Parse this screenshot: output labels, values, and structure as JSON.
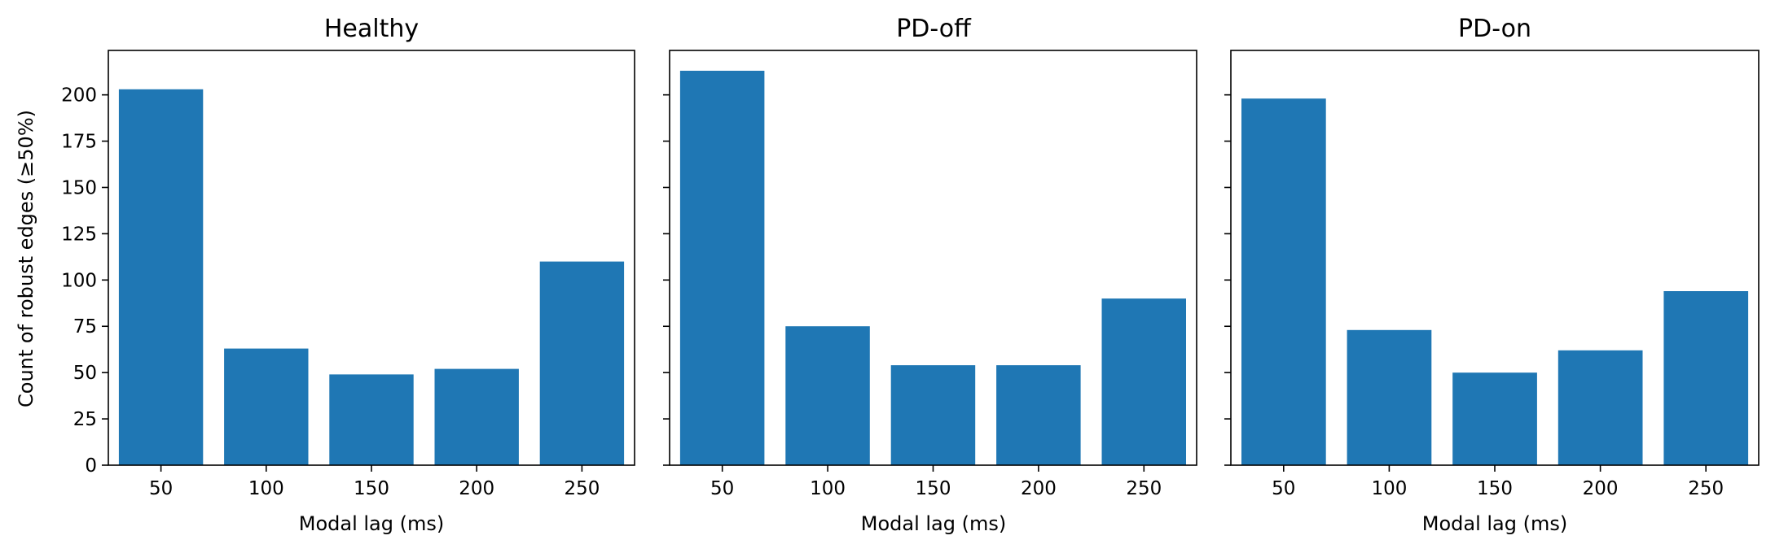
{
  "chart_data": [
    {
      "type": "bar",
      "title": "Healthy",
      "xlabel": "Modal lag (ms)",
      "ylabel": "Count of robust edges (≥50%)",
      "categories": [
        "50",
        "100",
        "150",
        "200",
        "250"
      ],
      "x": [
        50,
        100,
        150,
        200,
        250
      ],
      "values": [
        203,
        63,
        49,
        52,
        110
      ],
      "ylim": [
        0,
        224
      ],
      "yticks": [
        0,
        25,
        50,
        75,
        100,
        125,
        150,
        175,
        200
      ],
      "grid": false,
      "color": "#1f77b4"
    },
    {
      "type": "bar",
      "title": "PD-off",
      "xlabel": "Modal lag (ms)",
      "ylabel": "",
      "categories": [
        "50",
        "100",
        "150",
        "200",
        "250"
      ],
      "x": [
        50,
        100,
        150,
        200,
        250
      ],
      "values": [
        213,
        75,
        54,
        54,
        90
      ],
      "ylim": [
        0,
        224
      ],
      "yticks": [
        0,
        25,
        50,
        75,
        100,
        125,
        150,
        175,
        200
      ],
      "grid": false,
      "color": "#1f77b4"
    },
    {
      "type": "bar",
      "title": "PD-on",
      "xlabel": "Modal lag (ms)",
      "ylabel": "",
      "categories": [
        "50",
        "100",
        "150",
        "200",
        "250"
      ],
      "x": [
        50,
        100,
        150,
        200,
        250
      ],
      "values": [
        198,
        73,
        50,
        62,
        94
      ],
      "ylim": [
        0,
        224
      ],
      "yticks": [
        0,
        25,
        50,
        75,
        100,
        125,
        150,
        175,
        200
      ],
      "grid": false,
      "color": "#1f77b4"
    }
  ]
}
